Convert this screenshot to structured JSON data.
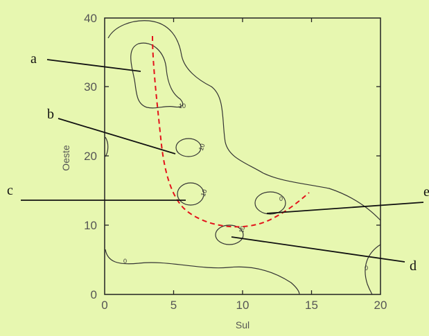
{
  "axes": {
    "xlabel": "Sul",
    "ylabel": "Oeste",
    "xlim": [
      0,
      20
    ],
    "ylim": [
      0,
      40
    ],
    "x_ticks": [
      "0",
      "5",
      "10",
      "15",
      "20"
    ],
    "y_ticks": [
      "0",
      "10",
      "20",
      "30",
      "40"
    ]
  },
  "contour_labels": {
    "blob_a": "10",
    "blob_b": "10",
    "blob_c": "10",
    "blob_e": "0",
    "blob_d": "10",
    "left_bottom": "0",
    "right_bottom": "0"
  },
  "callouts": [
    {
      "id": "a",
      "label": "a"
    },
    {
      "id": "b",
      "label": "b"
    },
    {
      "id": "c",
      "label": "c"
    },
    {
      "id": "d",
      "label": "d"
    },
    {
      "id": "e",
      "label": "e"
    }
  ],
  "colors": {
    "background": "#e7f7b0",
    "dashed_curve": "#e3121b",
    "contour": "#333333"
  }
}
